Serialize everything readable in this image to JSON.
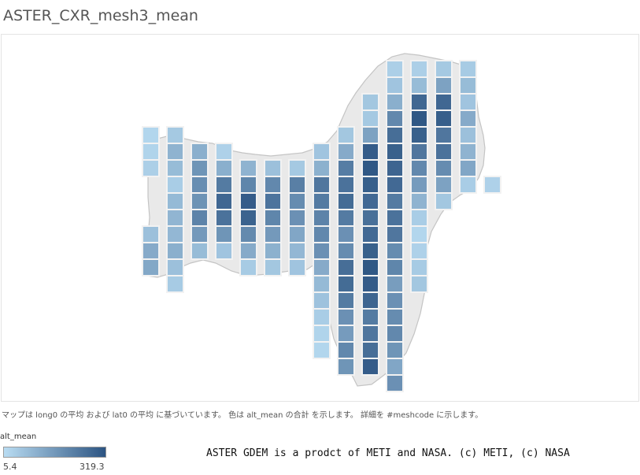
{
  "title": "ASTER_CXR_mesh3_mean",
  "caption": "マップは long0 の平均 および lat0 の平均 に基づいています。 色は alt_mean の合計 を示します。 詳細を #meshcode に示します。",
  "legend": {
    "title": "alt_mean",
    "min_label": "5.4",
    "max_label": "319.3",
    "min_value": 5.4,
    "max_value": 319.3,
    "color_low": "#b9dcf2",
    "color_high": "#2c5482"
  },
  "credit": "ASTER GDEM is a prodct of METI and NASA. (c) METI, (c) NASA",
  "colors": {
    "land": "#e9e9e9",
    "coast": "#c4c4c4",
    "cell_border": "#f2f2f2",
    "frame_border": "#e4e4e4"
  },
  "mesh_columns": [
    {
      "values": [
        20,
        25,
        35,
        null,
        null,
        null,
        70,
        120,
        125
      ]
    },
    {
      "values": [
        50,
        100,
        80,
        40,
        85,
        95,
        90,
        110,
        70,
        45
      ]
    },
    {
      "values": [
        110,
        170,
        185,
        175,
        210,
        160,
        80
      ]
    },
    {
      "values": [
        30,
        110,
        230,
        275,
        250,
        170,
        60
      ]
    },
    {
      "values": [
        100,
        205,
        300,
        285,
        195,
        120,
        45
      ]
    },
    {
      "values": [
        70,
        200,
        245,
        205,
        160,
        105,
        55
      ]
    },
    {
      "values": [
        50,
        220,
        190,
        180,
        130,
        90,
        60
      ]
    },
    {
      "values": [
        60,
        105,
        240,
        230,
        210,
        200,
        180,
        120,
        85,
        65,
        40,
        25,
        20
      ]
    },
    {
      "values": [
        55,
        120,
        225,
        250,
        265,
        230,
        180,
        190,
        260,
        265,
        230,
        180,
        155,
        200,
        170
      ]
    },
    {
      "values": [
        55,
        50,
        140,
        300,
        310,
        295,
        270,
        255,
        270,
        290,
        310,
        300,
        280,
        230,
        240,
        260,
        300
      ]
    },
    {
      "values": [
        35,
        60,
        110,
        200,
        260,
        290,
        280,
        270,
        230,
        250,
        240,
        190,
        205,
        150,
        180,
        190,
        200,
        170,
        130,
        180
      ]
    },
    {
      "values": [
        35,
        80,
        275,
        310,
        290,
        240,
        200,
        155,
        100,
        40,
        20,
        30,
        45,
        55
      ]
    },
    {
      "values": [
        50,
        140,
        275,
        295,
        240,
        250,
        190,
        140,
        55
      ]
    },
    {
      "values": [
        45,
        80,
        60,
        120,
        70,
        100,
        130,
        40
      ]
    },
    {
      "values": [
        30
      ]
    }
  ]
}
